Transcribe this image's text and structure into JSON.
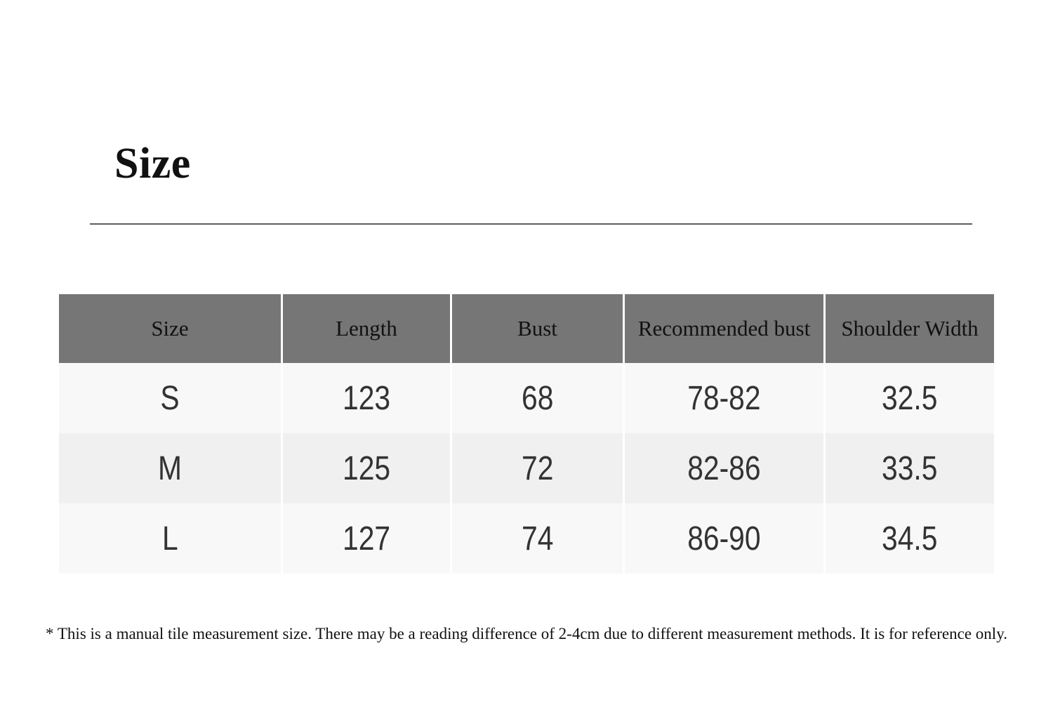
{
  "page": {
    "title": "Size",
    "footnote": "* This is a manual tile measurement size. There may be a reading difference of 2-4cm due to different measurement methods. It is for reference only."
  },
  "chart_data": {
    "type": "table",
    "title": "Size",
    "columns": [
      "Size",
      "Length",
      "Bust",
      "Recommended bust",
      "Shoulder Width"
    ],
    "rows": [
      [
        "S",
        "123",
        "68",
        "78-82",
        "32.5"
      ],
      [
        "M",
        "125",
        "72",
        "82-86",
        "33.5"
      ],
      [
        "L",
        "127",
        "74",
        "86-90",
        "34.5"
      ]
    ]
  },
  "colors": {
    "header_bg": "#767676",
    "row_light": "#f8f8f8",
    "row_alt": "#f0f0f0",
    "body_text": "#333333",
    "heading_text": "#111111",
    "divider": "#5e5e5e"
  }
}
